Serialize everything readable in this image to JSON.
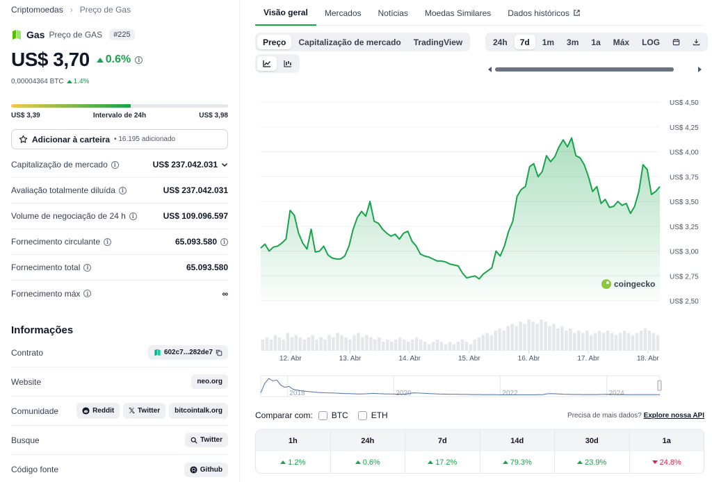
{
  "breadcrumb": {
    "root": "Criptomoedas",
    "current": "Preço de Gas"
  },
  "coin": {
    "name": "Gas",
    "subtitle": "Preço de GAS",
    "rank": "#225"
  },
  "price": {
    "value": "US$ 3,70",
    "change": "0.6%",
    "btc_value": "0,00004364 BTC",
    "btc_change": "1.4%"
  },
  "range": {
    "low": "US$ 3,39",
    "label": "Intervalo de 24h",
    "high": "US$ 3,98",
    "position_percent": 55
  },
  "portfolio": {
    "label": "Adicionar à carteira",
    "added": "• 16.195 adicionado"
  },
  "stats": [
    {
      "label": "Capitalização de mercado",
      "value": "US$ 237.042.031"
    },
    {
      "label": "Avaliação totalmente diluída",
      "value": "US$ 237.042.031"
    },
    {
      "label": "Volume de negociação de 24 h",
      "value": "US$ 109.096.597"
    },
    {
      "label": "Fornecimento circulante",
      "value": "65.093.580"
    },
    {
      "label": "Fornecimento total",
      "value": "65.093.580"
    },
    {
      "label": "Fornecimento máx",
      "value": "∞"
    }
  ],
  "info": {
    "title": "Informações",
    "contract": {
      "label": "Contrato",
      "value": "602c7...282de7"
    },
    "website": {
      "label": "Website",
      "value": "neo.org"
    },
    "community": {
      "label": "Comunidade",
      "reddit": "Reddit",
      "twitter": "Twitter",
      "forum": "bitcointalk.org"
    },
    "search": {
      "label": "Busque",
      "value": "Twitter"
    },
    "source": {
      "label": "Código fonte",
      "value": "Github"
    }
  },
  "tabs": [
    "Visão geral",
    "Mercados",
    "Notícias",
    "Moedas Similares",
    "Dados históricos"
  ],
  "chart_type_tabs": [
    "Preço",
    "Capitalização de mercado",
    "TradingView"
  ],
  "time_ranges": [
    "24h",
    "7d",
    "1m",
    "3m",
    "1a",
    "Máx",
    "LOG"
  ],
  "watermark": "coingecko",
  "compare": {
    "label": "Comparar com:",
    "btc": "BTC",
    "eth": "ETH",
    "more_text": "Precisa de mais dados?",
    "more_link": "Explore nossa API"
  },
  "performance": [
    {
      "period": "1h",
      "value": "1.2%",
      "direction": "up"
    },
    {
      "period": "24h",
      "value": "0.6%",
      "direction": "up"
    },
    {
      "period": "7d",
      "value": "17.2%",
      "direction": "up"
    },
    {
      "period": "14d",
      "value": "79.3%",
      "direction": "up"
    },
    {
      "period": "30d",
      "value": "23.9%",
      "direction": "up"
    },
    {
      "period": "1a",
      "value": "24.8%",
      "direction": "down"
    }
  ],
  "colors": {
    "accent": "#16a34a",
    "negative": "#e11d48",
    "line": "#16a34a"
  },
  "chart_data": {
    "type": "area",
    "xlabel": "",
    "ylabel": "",
    "y_ticks": [
      "US$ 4,50",
      "US$ 4,25",
      "US$ 4,00",
      "US$ 3,75",
      "US$ 3,50",
      "US$ 3,25",
      "US$ 3,00",
      "US$ 2,75",
      "US$ 2,50"
    ],
    "y_tick_values": [
      4.5,
      4.25,
      4.0,
      3.75,
      3.5,
      3.25,
      3.0,
      2.75,
      2.5
    ],
    "ylim": [
      2.5,
      4.5
    ],
    "x_ticks": [
      "12. Abr",
      "13. Abr",
      "14. Abr",
      "15. Abr",
      "16. Abr",
      "17. Abr",
      "18. Abr"
    ],
    "x_tick_positions": [
      0.5,
      1.5,
      2.5,
      3.5,
      4.5,
      5.5,
      6.5
    ],
    "xlim": [
      0,
      6.7
    ],
    "grid": true,
    "series": [
      {
        "values": [
          3.03,
          3.07,
          3.0,
          3.04,
          3.05,
          3.08,
          3.12,
          3.41,
          3.36,
          3.18,
          3.08,
          3.02,
          3.22,
          2.99,
          3.0,
          3.05,
          2.96,
          2.93,
          2.92,
          2.92,
          2.95,
          3.05,
          3.22,
          3.34,
          3.4,
          3.35,
          3.5,
          3.3,
          3.28,
          3.22,
          3.18,
          3.15,
          3.17,
          3.12,
          3.18,
          3.2,
          3.1,
          3.05,
          2.97,
          2.95,
          2.94,
          2.92,
          2.9,
          2.9,
          2.89,
          2.87,
          2.86,
          2.85,
          2.78,
          2.73,
          2.74,
          2.75,
          2.72,
          2.77,
          2.8,
          2.83,
          3.0,
          2.95,
          3.05,
          3.2,
          3.3,
          3.55,
          3.62,
          3.65,
          3.85,
          3.88,
          3.75,
          3.8,
          3.96,
          3.9,
          3.95,
          4.05,
          4.12,
          4.05,
          4.14,
          3.96,
          3.94,
          3.87,
          3.75,
          3.6,
          3.65,
          3.48,
          3.52,
          3.44,
          3.45,
          3.5,
          3.46,
          3.48,
          3.38,
          3.45,
          3.6,
          3.87,
          3.82,
          3.57,
          3.6,
          3.65
        ]
      }
    ],
    "volume_values": [
      5,
      6,
      5,
      7,
      6,
      5,
      8,
      6,
      7,
      6,
      5,
      6,
      7,
      5,
      6,
      5,
      7,
      6,
      8,
      7,
      6,
      5,
      7,
      8,
      6,
      7,
      6,
      5,
      6,
      4,
      5,
      4,
      5,
      6,
      5,
      4,
      5,
      6,
      5,
      4,
      3,
      4,
      5,
      4,
      3,
      4,
      3,
      4,
      5,
      4,
      3,
      5,
      6,
      7,
      8,
      7,
      9,
      10,
      9,
      11,
      12,
      11,
      13,
      12,
      14,
      13,
      12,
      14,
      13,
      11,
      12,
      10,
      11,
      9,
      10,
      8,
      9,
      8,
      9,
      7,
      8,
      9,
      8,
      9,
      8,
      7,
      8,
      9,
      8,
      7,
      8,
      9,
      10,
      9,
      8,
      7
    ],
    "navigator": {
      "x_ticks": [
        "2018",
        "2020",
        "2022",
        "2024"
      ],
      "x_tick_positions": [
        0.5,
        2.5,
        4.5,
        6.5
      ],
      "xlim": [
        0,
        7.5
      ],
      "values": [
        60,
        300,
        420,
        360,
        380,
        250,
        200,
        220,
        150,
        130,
        110,
        100,
        90,
        80,
        70,
        65,
        60,
        58,
        55,
        50,
        45,
        40,
        38,
        35,
        32,
        30,
        35,
        40,
        45,
        40,
        35,
        32,
        30,
        28,
        26,
        25,
        30,
        45,
        60,
        55,
        50,
        45,
        40,
        35,
        30,
        28,
        26,
        25,
        24,
        22,
        20,
        20,
        18,
        16,
        15,
        14,
        13,
        12,
        12,
        11,
        10,
        10,
        10,
        10,
        10,
        10,
        10,
        10,
        11,
        12,
        15,
        35,
        40,
        35,
        30,
        25,
        22,
        20,
        18,
        17,
        16,
        16,
        15,
        16,
        18,
        20,
        22,
        20,
        18,
        16,
        15,
        14,
        14,
        13,
        12,
        12,
        12,
        12,
        13,
        14
      ]
    }
  }
}
